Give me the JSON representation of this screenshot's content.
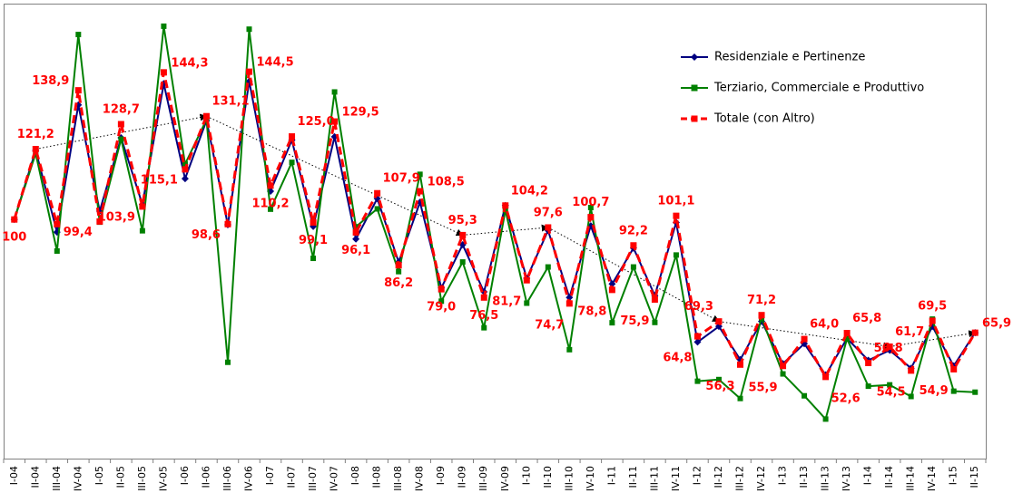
{
  "chart_data": {
    "type": "line",
    "categories": [
      "I-04",
      "II-04",
      "III-04",
      "IV-04",
      "I-05",
      "II-05",
      "III-05",
      "IV-05",
      "I-06",
      "II-06",
      "III-06",
      "IV-06",
      "I-07",
      "II-07",
      "III-07",
      "IV-07",
      "I-08",
      "II-08",
      "III-08",
      "IV-08",
      "I-09",
      "II-09",
      "III-09",
      "IV-09",
      "I-10",
      "II-10",
      "III-10",
      "IV-10",
      "I-11",
      "II-11",
      "III-11",
      "IV-11",
      "I-12",
      "II-12",
      "III-12",
      "IV-12",
      "I-13",
      "II-13",
      "III-13",
      "IV-13",
      "I-14",
      "II-14",
      "III-14",
      "IV-14",
      "I-15",
      "II-15"
    ],
    "ylim": [
      28,
      165
    ],
    "grid": false,
    "legend_position": "top-right",
    "series": [
      {
        "name": "Residenziale e Pertinenze",
        "color": "#000080",
        "marker": "diamond",
        "values": [
          100,
          120.8,
          96.2,
          134.5,
          102.5,
          124.6,
          104.5,
          140.9,
          112.3,
          129.8,
          98.4,
          141.6,
          108.5,
          123.9,
          97.9,
          124.9,
          94.1,
          106.3,
          87.2,
          105.2,
          79.4,
          92.4,
          78.2,
          104.2,
          82.3,
          96.7,
          76.5,
          98.1,
          80.6,
          91.4,
          77.1,
          99.1,
          63.1,
          67.8,
          57.8,
          69.3,
          56.6,
          62.6,
          53.2,
          64.2,
          57.6,
          60.6,
          55.2,
          67.8,
          55.9,
          65.9
        ]
      },
      {
        "name": "Terziario, Commerciale e Produttivo",
        "color": "#008000",
        "marker": "square",
        "values": [
          100,
          119.9,
          90.5,
          155.7,
          99.2,
          124.2,
          96.6,
          158.2,
          116.7,
          130.1,
          57.0,
          157.3,
          103.1,
          117.2,
          88.3,
          138.4,
          97.8,
          103.2,
          84.3,
          113.6,
          75.4,
          87.2,
          67.4,
          102.8,
          74.8,
          85.7,
          60.8,
          103.6,
          68.9,
          85.7,
          69.0,
          89.3,
          51.3,
          51.8,
          46.1,
          70.4,
          53.5,
          46.9,
          39.9,
          64.1,
          49.8,
          50.2,
          46.7,
          70.0,
          48.3,
          48.0
        ]
      },
      {
        "name": "Totale (con Altro)",
        "color": "#ff0000",
        "marker": "square",
        "dashed": true,
        "values": [
          100,
          121.2,
          98.6,
          138.9,
          99.4,
          128.7,
          103.9,
          144.3,
          115.1,
          131.1,
          98.6,
          144.5,
          110.2,
          125.0,
          99.1,
          129.5,
          96.1,
          107.9,
          86.2,
          108.5,
          79.0,
          95.3,
          76.5,
          104.2,
          81.7,
          97.6,
          74.7,
          100.7,
          78.8,
          92.2,
          75.9,
          101.1,
          64.8,
          69.3,
          56.3,
          71.2,
          55.9,
          64.0,
          52.6,
          65.8,
          56.8,
          61.7,
          54.5,
          69.5,
          54.9,
          65.9
        ]
      }
    ],
    "data_labels": [
      {
        "i": 0,
        "text": "100",
        "pos": "below"
      },
      {
        "i": 1,
        "text": "121,2",
        "pos": "above"
      },
      {
        "i": 3,
        "text": "138,9",
        "pos": "left"
      },
      {
        "i": 4,
        "text": "99,4",
        "pos": "leftbelow"
      },
      {
        "i": 5,
        "text": "128,7",
        "pos": "above"
      },
      {
        "i": 6,
        "text": "103,9",
        "pos": "leftbelow"
      },
      {
        "i": 7,
        "text": "144,3",
        "pos": "right"
      },
      {
        "i": 8,
        "text": "115,1",
        "pos": "leftbelow"
      },
      {
        "i": 9,
        "text": "131,1",
        "pos": "aboveright"
      },
      {
        "i": 10,
        "text": "98,6",
        "pos": "leftbelow"
      },
      {
        "i": 11,
        "text": "144,5",
        "pos": "right"
      },
      {
        "i": 12,
        "text": "110,2",
        "pos": "below"
      },
      {
        "i": 13,
        "text": "125,0",
        "pos": "aboveright"
      },
      {
        "i": 14,
        "text": "99,1",
        "pos": "below"
      },
      {
        "i": 15,
        "text": "129,5",
        "pos": "right"
      },
      {
        "i": 16,
        "text": "96,1",
        "pos": "below"
      },
      {
        "i": 17,
        "text": "107,9",
        "pos": "aboveright"
      },
      {
        "i": 18,
        "text": "86,2",
        "pos": "below"
      },
      {
        "i": 19,
        "text": "108,5",
        "pos": "right"
      },
      {
        "i": 20,
        "text": "79,0",
        "pos": "below"
      },
      {
        "i": 21,
        "text": "95,3",
        "pos": "above"
      },
      {
        "i": 22,
        "text": "76,5",
        "pos": "below"
      },
      {
        "i": 23,
        "text": "104,2",
        "pos": "aboveright"
      },
      {
        "i": 24,
        "text": "81,7",
        "pos": "belowleft"
      },
      {
        "i": 25,
        "text": "97,6",
        "pos": "above"
      },
      {
        "i": 26,
        "text": "74,7",
        "pos": "belowleft"
      },
      {
        "i": 27,
        "text": "100,7",
        "pos": "above"
      },
      {
        "i": 28,
        "text": "78,8",
        "pos": "belowleft"
      },
      {
        "i": 29,
        "text": "92,2",
        "pos": "above"
      },
      {
        "i": 30,
        "text": "75,9",
        "pos": "belowleft"
      },
      {
        "i": 31,
        "text": "101,1",
        "pos": "above"
      },
      {
        "i": 32,
        "text": "64,8",
        "pos": "belowleft"
      },
      {
        "i": 33,
        "text": "69,3",
        "pos": "aboveleft"
      },
      {
        "i": 34,
        "text": "56,3",
        "pos": "belowleft"
      },
      {
        "i": 35,
        "text": "71,2",
        "pos": "above"
      },
      {
        "i": 36,
        "text": "55,9",
        "pos": "belowleft"
      },
      {
        "i": 37,
        "text": "64,0",
        "pos": "aboveright"
      },
      {
        "i": 38,
        "text": "52,6",
        "pos": "belowright"
      },
      {
        "i": 39,
        "text": "65,8",
        "pos": "aboveright"
      },
      {
        "i": 40,
        "text": "56,8",
        "pos": "aboveright"
      },
      {
        "i": 41,
        "text": "61,7",
        "pos": "aboveright"
      },
      {
        "i": 42,
        "text": "54,5",
        "pos": "belowleft"
      },
      {
        "i": 43,
        "text": "69,5",
        "pos": "above"
      },
      {
        "i": 44,
        "text": "54,9",
        "pos": "belowleft"
      },
      {
        "i": 45,
        "text": "65,9",
        "pos": "right"
      }
    ],
    "trend_arrows": [
      {
        "from": 1,
        "to": 9
      },
      {
        "from": 9,
        "to": 21
      },
      {
        "from": 21,
        "to": 25
      },
      {
        "from": 25,
        "to": 33
      },
      {
        "from": 33,
        "to": 41
      },
      {
        "from": 41,
        "to": 45
      }
    ]
  }
}
